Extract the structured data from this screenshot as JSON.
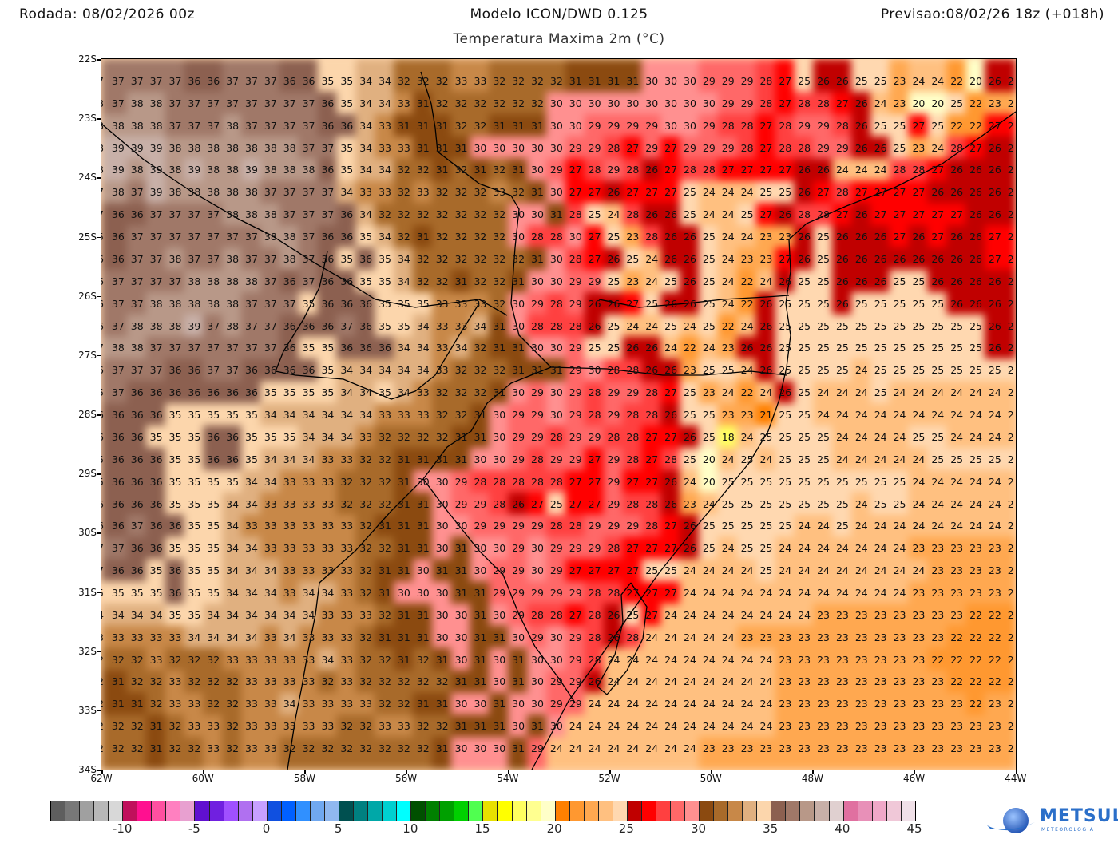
{
  "header": {
    "run": "Rodada: 08/02/2026 00z",
    "model": "Modelo ICON/DWD 0.125",
    "valid": "Previsao:08/02/26 18z (+018h)",
    "subtitle": "Temperatura Maxima 2m (°C)"
  },
  "axes": {
    "x_labels": [
      "62W",
      "60W",
      "58W",
      "56W",
      "54W",
      "52W",
      "50W",
      "48W",
      "46W",
      "44W"
    ],
    "y_labels": [
      "22S",
      "23S",
      "24S",
      "25S",
      "26S",
      "27S",
      "28S",
      "29S",
      "30S",
      "31S",
      "32S",
      "33S",
      "34S"
    ]
  },
  "grid_rows": [
    "7 37 37 37 37 36 36 37 37 37 36 36 35 35 34 34 32 32 32 33 33 32 32 32 32 31 31 31 31 30 30 30 29 29 29 28 27 25 26 26 25 25 23 24 24 22 20 26 2",
    "8 37 38 38 37 37 37 37 37 37 37 37 36 35 34 34 33 31 32 32 32 32 32 32 30 30 30 30 30 30 30 30 30 29 29 28 27 28 28 27 26 24 23 20 20 25 22 23 2",
    "8 38 38 38 37 37 37 38 37 37 37 37 36 36 34 33 31 31 31 32 32 31 31 31 30 30 29 29 29 29 30 30 29 28 28 27 28 29 29 28 26 25 25 27 25 22 22 27 2",
    "8 39 39 39 38 38 38 38 38 38 38 37 37 35 34 33 33 31 31 31 30 30 30 30 30 29 29 28 27 29 27 29 29 29 28 27 28 28 29 29 26 26 25 23 24 28 27 26 2",
    "8 39 38 39 38 39 38 38 39 38 38 38 36 35 34 34 32 32 31 32 31 32 31 30 29 27 28 29 28 26 27 28 28 27 27 27 27 26 26 24 24 24 28 28 27 26 26 26 2",
    "7 38 37 39 38 38 38 38 38 37 37 37 37 34 33 33 32 33 32 32 32 33 32 31 30 27 27 26 27 27 27 25 24 24 24 25 25 26 27 28 27 27 27 27 26 26 26 26 2",
    "7 36 36 37 37 37 37 38 38 38 37 37 37 36 34 32 32 32 32 32 32 32 30 30 31 28 25 24 28 26 26 25 24 24 25 27 26 28 28 27 26 27 27 27 27 27 26 26 2",
    "5 36 37 37 37 37 37 37 37 38 38 37 36 36 35 34 32 31 32 32 32 32 30 28 28 30 27 25 23 28 26 26 25 24 24 23 23 26 25 26 26 26 27 26 27 26 26 27 2",
    "6 36 37 37 38 37 37 38 37 37 38 37 36 35 36 35 34 32 32 32 32 32 32 31 30 28 27 26 25 24 26 26 25 24 23 23 27 26 25 26 26 26 26 26 26 26 26 27 2",
    "6 37 37 37 37 38 38 38 38 37 36 37 36 36 35 35 34 32 32 31 32 32 31 30 30 29 29 25 23 24 25 26 25 24 22 24 26 25 25 26 26 26 25 25 26 26 26 26 2",
    "6 37 37 38 38 38 38 38 37 37 37 35 36 36 36 35 35 35 33 33 33 32 30 29 28 29 26 26 27 25 26 26 25 24 22 26 25 25 25 26 25 25 25 25 25 26 26 26 2",
    "6 37 38 38 38 39 37 38 37 37 36 36 36 37 36 35 35 34 33 33 34 31 30 28 28 28 26 25 24 24 25 24 25 22 24 26 25 25 25 25 25 25 25 25 25 25 25 26 2",
    "7 38 38 37 37 37 37 37 37 37 36 35 35 36 36 36 34 34 33 34 32 31 31 30 30 29 25 25 26 26 24 22 24 23 26 26 25 25 25 25 25 25 25 25 25 25 25 26 2",
    "6 37 37 37 36 36 37 37 36 36 36 36 35 34 34 34 34 34 33 32 32 32 31 31 31 29 30 28 28 26 26 23 25 25 24 26 25 25 25 25 24 25 25 25 25 25 25 25 2",
    "5 37 36 36 36 36 36 36 36 35 35 35 35 34 34 35 34 33 32 32 32 31 30 29 30 29 28 29 29 28 27 25 23 24 22 24 26 25 24 24 24 25 24 24 24 24 24 24 2",
    "6 36 36 36 35 35 35 35 35 34 34 34 34 34 34 33 33 33 32 32 31 30 29 29 30 29 28 29 28 28 26 25 25 23 23 21 25 25 24 24 24 24 24 24 24 24 24 24 2",
    "6 36 36 35 35 35 36 36 35 35 35 34 34 34 33 32 32 32 32 31 31 30 29 29 28 29 29 28 28 27 27 26 25 18 24 25 25 25 25 24 24 24 24 25 25 24 24 24 2",
    "5 36 36 36 35 35 36 36 35 34 34 34 33 33 32 32 31 31 31 31 30 30 29 28 29 29 27 29 28 27 28 25 20 24 25 24 25 25 25 24 24 24 24 24 25 25 25 25 2",
    "5 36 36 36 35 35 35 35 34 34 33 33 33 32 32 32 31 30 30 29 28 28 28 28 28 27 27 29 27 27 26 24 20 25 25 25 25 25 25 25 25 25 25 24 24 24 24 24 2",
    "6 36 36 36 35 35 35 34 34 33 33 33 33 32 32 32 31 31 30 29 29 28 26 27 25 27 27 29 28 28 26 23 24 25 25 25 25 25 25 25 24 25 25 24 24 24 24 24 2",
    "6 36 37 36 36 35 35 34 33 33 33 33 33 33 32 31 31 31 30 30 29 29 29 29 28 28 29 29 29 28 27 26 25 25 25 25 25 24 24 25 24 24 24 24 24 24 24 24 2",
    "7 37 36 36 35 35 35 34 34 33 33 33 33 33 32 32 31 31 30 31 30 30 29 30 29 29 29 28 27 27 27 26 25 24 25 25 24 24 24 24 24 24 24 23 23 23 23 23 2",
    "7 36 36 35 36 35 35 34 34 34 33 33 33 33 32 31 31 30 31 31 30 29 29 30 29 27 27 27 27 25 25 24 24 24 24 25 24 24 24 24 24 24 24 24 23 23 23 23 2",
    "5 35 35 35 36 35 35 34 34 34 33 34 34 33 32 31 30 30 30 31 31 29 29 29 29 29 28 28 27 27 27 24 24 24 24 24 24 24 24 24 24 24 24 23 23 23 23 23 2",
    "4 34 34 34 35 35 34 34 34 34 34 34 33 33 33 32 31 31 30 30 31 30 29 28 28 27 28 26 25 27 24 24 24 24 24 24 24 24 23 23 23 23 23 23 23 23 22 22 2",
    "3 33 33 33 33 34 34 34 34 33 34 33 33 33 32 31 31 31 30 30 31 31 30 29 30 29 28 26 28 24 24 24 24 24 23 23 23 23 23 23 23 23 23 23 23 22 22 22 2",
    "2 32 32 33 32 32 32 33 33 33 33 33 34 33 32 32 31 32 31 30 31 30 31 30 30 29 28 24 24 24 24 24 24 24 24 24 23 23 23 23 23 23 23 23 22 22 22 22 2",
    "2 31 32 32 33 32 32 32 33 33 33 33 32 33 32 32 32 32 32 31 31 30 31 30 29 29 26 24 24 24 24 24 24 24 24 24 23 23 23 23 23 23 23 23 23 22 22 22 2",
    "2 31 31 32 33 33 32 32 33 33 34 33 33 33 33 32 32 31 31 30 30 31 30 30 29 29 24 24 24 24 24 24 24 24 24 24 23 23 23 23 23 23 23 23 23 23 22 23 2",
    "2 32 32 31 32 33 33 32 33 33 33 33 33 32 32 33 33 32 32 31 31 31 30 31 30 24 24 24 24 24 24 24 24 24 24 24 23 23 23 23 23 23 23 23 23 23 23 23 2",
    "2 32 32 31 32 32 33 32 33 33 32 32 32 32 32 32 32 32 31 30 30 30 31 29 24 24 24 24 24 24 24 24 23 23 23 23 23 23 23 23 23 23 23 23 23 23 23 23 2"
  ],
  "colorbar": {
    "min": -15,
    "max": 45,
    "labels": [
      "-10",
      "-5",
      "0",
      "5",
      "10",
      "15",
      "20",
      "25",
      "30",
      "35",
      "40",
      "45"
    ],
    "colors": [
      "#5e5e5e",
      "#787878",
      "#a0a0a0",
      "#b8b8b8",
      "#d8d8d8",
      "#c0105c",
      "#ff1090",
      "#ff50a0",
      "#ff80c0",
      "#e8a0d0",
      "#6010d0",
      "#7020e0",
      "#a050ff",
      "#b070f0",
      "#c8a0ff",
      "#1050e0",
      "#0060ff",
      "#3090ff",
      "#70a8f0",
      "#90b8f0",
      "#005050",
      "#008080",
      "#00a8a8",
      "#00d0d0",
      "#00ffff",
      "#005000",
      "#008000",
      "#00a000",
      "#00d000",
      "#50ff50",
      "#e8e000",
      "#ffff00",
      "#ffff60",
      "#ffff90",
      "#ffffc8",
      "#ff8000",
      "#ff9830",
      "#ffa850",
      "#ffc080",
      "#ffd8b0",
      "#c00000",
      "#ff0000",
      "#ff4040",
      "#ff6868",
      "#ff9090",
      "#8b4a10",
      "#a86a2a",
      "#c88848",
      "#e0b080",
      "#fcd6ac",
      "#8c6050",
      "#a07868",
      "#b89888",
      "#c8b0a8",
      "#e0d0d0",
      "#e070a0",
      "#e890b8",
      "#f0a8c8",
      "#f0c8d8",
      "#f0e0e8",
      "#ffffff"
    ]
  },
  "logo": {
    "name": "METSUL",
    "tagline": "METEOROLOGIA",
    "color": "#2b6fc9"
  }
}
